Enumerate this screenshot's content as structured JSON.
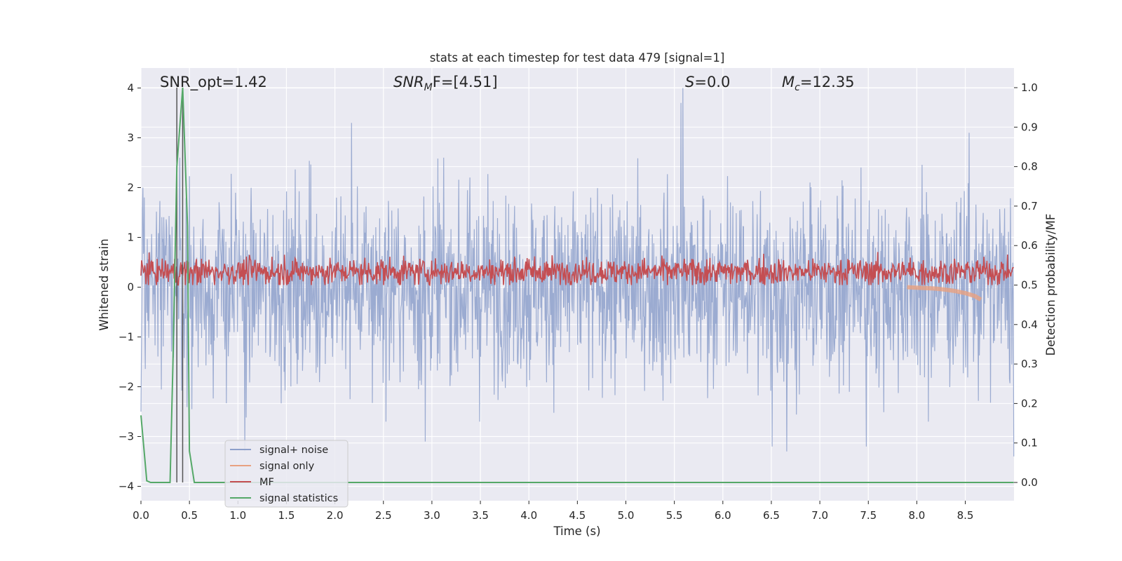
{
  "chart_data": {
    "type": "line",
    "title": "stats at each timestep for test data 479 [signal=1]",
    "xlabel": "Time (s)",
    "ylabel": "Whitened strain",
    "ylabel_right": "Detection probability/MF",
    "xlim": [
      0,
      9.0
    ],
    "ylim": [
      -4.3,
      4.4
    ],
    "ylim_right": [
      -0.05,
      1.05
    ],
    "x_ticks": [
      "0.0",
      "0.5",
      "1.0",
      "1.5",
      "2.0",
      "2.5",
      "3.0",
      "3.5",
      "4.0",
      "4.5",
      "5.0",
      "5.5",
      "6.0",
      "6.5",
      "7.0",
      "7.5",
      "8.0",
      "8.5"
    ],
    "y_ticks": [
      "4",
      "3",
      "2",
      "1",
      "0",
      "−1",
      "−2",
      "−3",
      "−4"
    ],
    "y_ticks_right": [
      "1.0",
      "0.9",
      "0.8",
      "0.7",
      "0.6",
      "0.5",
      "0.4",
      "0.3",
      "0.2",
      "0.1",
      "0.0"
    ],
    "grid": true,
    "legend_position": "lower-left",
    "annotations": {
      "snr_opt": "SNR_opt=1.42",
      "snr_mf_main": "SNR",
      "snr_mf_sub": "M",
      "snr_mf_rest": "F=[4.51]",
      "s_main": "S",
      "s_rest": "=0.0",
      "mc_main": "M",
      "mc_sub": "c",
      "mc_rest": "=12.35"
    },
    "vertical_lines": [
      0.37,
      0.43
    ],
    "series": [
      {
        "name": "signal+ noise",
        "color": "#8da0cb",
        "description_note": "",
        "sample_rate_points": 1800,
        "noise_std": 1.0,
        "peaks": [
          [
            0.02,
            2.0
          ],
          [
            0.4,
            2.6
          ],
          [
            2.17,
            3.3
          ],
          [
            5.59,
            4.0
          ],
          [
            5.57,
            3.7
          ],
          [
            8.54,
            3.1
          ],
          [
            9.0,
            2.9
          ],
          [
            1.07,
            2.6
          ],
          [
            0.0,
            -2.5
          ],
          [
            1.07,
            -3.3
          ],
          [
            2.93,
            -3.1
          ],
          [
            6.66,
            -3.3
          ],
          [
            7.48,
            -3.2
          ],
          [
            9.0,
            -3.4
          ],
          [
            6.51,
            -3.2
          ]
        ]
      },
      {
        "name": "signal only",
        "color": "#e8a181",
        "x": [
          7.9,
          8.0,
          8.1,
          8.2,
          8.3,
          8.4,
          8.5,
          8.6,
          8.66
        ],
        "y": [
          0.0,
          -0.01,
          -0.02,
          -0.03,
          -0.05,
          -0.08,
          -0.12,
          -0.18,
          -0.25
        ]
      },
      {
        "name": "MF",
        "color": "#c44e52",
        "axis": "right",
        "baseline": 0.534,
        "range": [
          0.5,
          0.6
        ]
      },
      {
        "name": "signal statistics",
        "color": "#55a868",
        "axis": "right",
        "x": [
          0.0,
          0.06,
          0.1,
          0.2,
          0.3,
          0.33,
          0.37,
          0.43,
          0.48,
          0.5,
          0.55,
          1.0,
          2.0,
          3.0,
          4.0,
          5.0,
          6.0,
          7.0,
          8.0,
          9.0
        ],
        "y": [
          0.17,
          0.004,
          0.0,
          0.0,
          0.0,
          0.3,
          0.8,
          1.0,
          0.65,
          0.08,
          0.0,
          0.0,
          0.0,
          0.0,
          0.0,
          0.0,
          0.0,
          0.0,
          0.0,
          0.0
        ]
      }
    ]
  }
}
